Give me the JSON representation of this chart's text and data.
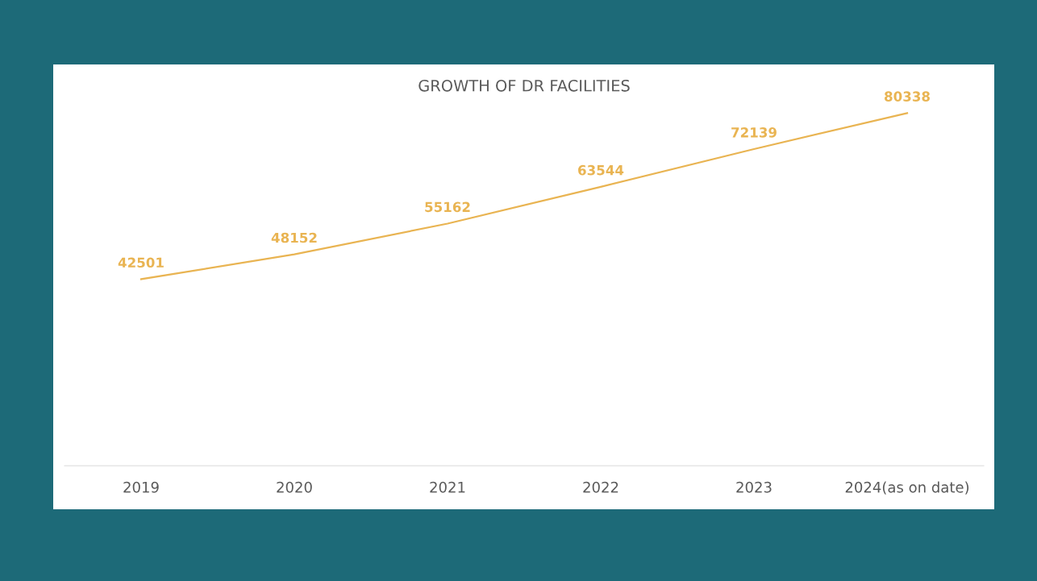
{
  "chart_data": {
    "type": "line",
    "title": "GROWTH OF DR FACILITIES",
    "categories": [
      "2019",
      "2020",
      "2021",
      "2022",
      "2023",
      "2024(as on date)"
    ],
    "series": [
      {
        "color": "#e9b452",
        "values": [
          42501,
          48152,
          55162,
          63544,
          72139,
          80338
        ]
      }
    ],
    "tick_labels": "x",
    "data_labels": true,
    "grid": false,
    "legend": false,
    "line_style": "solid"
  }
}
